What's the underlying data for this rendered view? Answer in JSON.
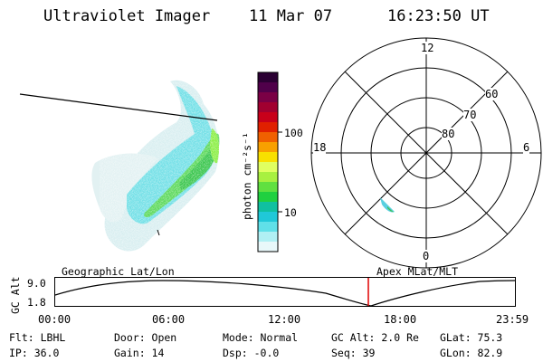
{
  "header": {
    "instrument": "Ultraviolet Imager",
    "date": "11 Mar 07",
    "time": "16:23:50 UT"
  },
  "colorbar": {
    "label": "photon cm⁻²s⁻¹",
    "ticks": [
      "100",
      "10"
    ],
    "colors": [
      "#2b0033",
      "#50004a",
      "#7a0045",
      "#a10030",
      "#c8001a",
      "#e02000",
      "#f06000",
      "#f8a000",
      "#f8e000",
      "#e0ff60",
      "#a8f040",
      "#60e040",
      "#20d040",
      "#10c0a0",
      "#20c8d8",
      "#60e0e8",
      "#b0f0f4",
      "#e8f8fa"
    ]
  },
  "polar": {
    "hour_labels": {
      "top": "12",
      "left": "18",
      "right": "6",
      "bottom": "0"
    },
    "lat_labels": [
      "60",
      "70",
      "80"
    ]
  },
  "timeline": {
    "y_axis_title": "GC Alt",
    "y_ticks": [
      "9.0",
      "1.8"
    ],
    "left_caption": "Geographic Lat/Lon",
    "right_caption": "Apex MLat/MLT",
    "x_ticks": [
      "00:00",
      "06:00",
      "12:00",
      "18:00",
      "23:59"
    ],
    "marker_color": "#e00000"
  },
  "status": {
    "filter": "Flt: LBHL",
    "ip": "IP: 36.0",
    "door": "Door: Open",
    "gain": "Gain: 14",
    "mode": "Mode: Normal",
    "dsp": "Dsp:  -0.0",
    "gc_alt": "GC Alt: 2.0 Re",
    "seq": "Seq: 39",
    "glat": "GLat:  75.3",
    "glon": "GLon:  82.9"
  }
}
